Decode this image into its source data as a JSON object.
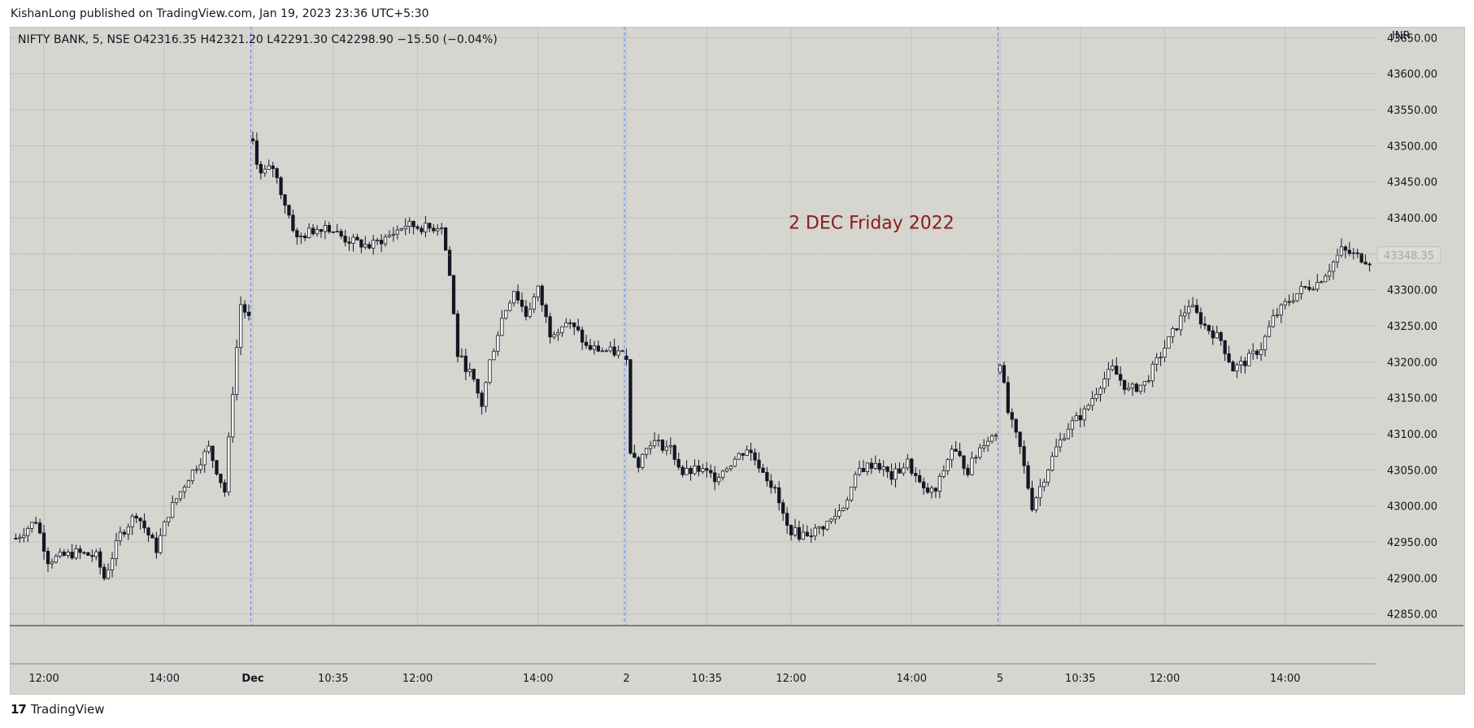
{
  "header": {
    "publisher": "KishanLong published on TradingView.com, Jan 19, 2023 23:36 UTC+5:30"
  },
  "legend": {
    "symbol": "NIFTY BANK, 5, NSE",
    "o_label": "O",
    "o_value": "42316.35",
    "h_label": "H",
    "h_value": "42321.20",
    "l_label": "L",
    "l_value": "42291.30",
    "c_label": "C",
    "c_value": "42298.90",
    "change": "−15.50 (−0.04%)"
  },
  "footer": {
    "brand": "TradingView",
    "logo": "17"
  },
  "chart_data": {
    "type": "candlestick",
    "currency": "INR",
    "annotations": [
      {
        "text": "2 DEC Friday 2022",
        "x_index": 213,
        "y": 43385,
        "color": "#8b1a1a"
      }
    ],
    "ylim": [
      42835,
      43665
    ],
    "y_ticks": [
      43650,
      43600,
      43550,
      43500,
      43450,
      43400,
      43350,
      43300,
      43250,
      43200,
      43150,
      43100,
      43050,
      43000,
      42950,
      42900,
      42850
    ],
    "y_tick_labels": [
      "43650.00",
      "43600.00",
      "43550.00",
      "43500.00",
      "43450.00",
      "43400.00",
      "43350.00",
      "43300.00",
      "43250.00",
      "43200.00",
      "43150.00",
      "43100.00",
      "43050.00",
      "43000.00",
      "42950.00",
      "42900.00",
      "42850.00"
    ],
    "last_price": {
      "value": 43348.35,
      "label": "43348.35"
    },
    "x_ticks": [
      {
        "index": 7,
        "label": "12:00",
        "bold": false
      },
      {
        "index": 37,
        "label": "14:00",
        "bold": false
      },
      {
        "index": 59,
        "label": "Dec",
        "bold": true
      },
      {
        "index": 79,
        "label": "10:35",
        "bold": false
      },
      {
        "index": 100,
        "label": "12:00",
        "bold": false
      },
      {
        "index": 130,
        "label": "14:00",
        "bold": false
      },
      {
        "index": 152,
        "label": "2",
        "bold": false
      },
      {
        "index": 172,
        "label": "10:35",
        "bold": false
      },
      {
        "index": 193,
        "label": "12:00",
        "bold": false
      },
      {
        "index": 223,
        "label": "14:00",
        "bold": false
      },
      {
        "index": 245,
        "label": "5",
        "bold": false
      },
      {
        "index": 265,
        "label": "10:35",
        "bold": false
      },
      {
        "index": 286,
        "label": "12:00",
        "bold": false
      },
      {
        "index": 316,
        "label": "14:00",
        "bold": false
      }
    ],
    "session_breaks": [
      59,
      152,
      245
    ],
    "grid": true,
    "candle_count": 338,
    "candles_compact_note": "each row: [open, high, low, close]",
    "close_path": [
      [
        0,
        42955
      ],
      [
        5,
        42980
      ],
      [
        8,
        42925
      ],
      [
        15,
        42935
      ],
      [
        20,
        42930
      ],
      [
        22,
        42900
      ],
      [
        26,
        42960
      ],
      [
        30,
        42990
      ],
      [
        35,
        42940
      ],
      [
        38,
        42990
      ],
      [
        43,
        43040
      ],
      [
        48,
        43080
      ],
      [
        52,
        43020
      ],
      [
        54,
        43160
      ],
      [
        56,
        43280
      ],
      [
        58,
        43260
      ],
      [
        59,
        43500
      ],
      [
        61,
        43460
      ],
      [
        64,
        43470
      ],
      [
        67,
        43420
      ],
      [
        70,
        43370
      ],
      [
        73,
        43380
      ],
      [
        77,
        43390
      ],
      [
        82,
        43370
      ],
      [
        88,
        43360
      ],
      [
        93,
        43375
      ],
      [
        97,
        43390
      ],
      [
        103,
        43385
      ],
      [
        106,
        43390
      ],
      [
        108,
        43320
      ],
      [
        110,
        43210
      ],
      [
        113,
        43185
      ],
      [
        116,
        43140
      ],
      [
        118,
        43200
      ],
      [
        121,
        43260
      ],
      [
        124,
        43300
      ],
      [
        127,
        43265
      ],
      [
        130,
        43300
      ],
      [
        133,
        43240
      ],
      [
        137,
        43255
      ],
      [
        140,
        43240
      ],
      [
        142,
        43220
      ],
      [
        152,
        43210
      ],
      [
        153,
        43080
      ],
      [
        155,
        43060
      ],
      [
        158,
        43090
      ],
      [
        163,
        43080
      ],
      [
        166,
        43045
      ],
      [
        170,
        43050
      ],
      [
        174,
        43040
      ],
      [
        178,
        43060
      ],
      [
        182,
        43080
      ],
      [
        186,
        43050
      ],
      [
        189,
        43020
      ],
      [
        192,
        42970
      ],
      [
        195,
        42960
      ],
      [
        199,
        42965
      ],
      [
        203,
        42980
      ],
      [
        206,
        43000
      ],
      [
        210,
        43050
      ],
      [
        214,
        43060
      ],
      [
        218,
        43040
      ],
      [
        222,
        43060
      ],
      [
        226,
        43020
      ],
      [
        229,
        43020
      ],
      [
        233,
        43080
      ],
      [
        237,
        43050
      ],
      [
        241,
        43090
      ],
      [
        244,
        43100
      ],
      [
        245,
        43200
      ],
      [
        247,
        43130
      ],
      [
        250,
        43080
      ],
      [
        253,
        43000
      ],
      [
        256,
        43040
      ],
      [
        259,
        43080
      ],
      [
        262,
        43110
      ],
      [
        266,
        43130
      ],
      [
        270,
        43170
      ],
      [
        273,
        43190
      ],
      [
        277,
        43160
      ],
      [
        281,
        43170
      ],
      [
        284,
        43200
      ],
      [
        288,
        43240
      ],
      [
        292,
        43280
      ],
      [
        296,
        43250
      ],
      [
        300,
        43230
      ],
      [
        303,
        43190
      ],
      [
        306,
        43200
      ],
      [
        310,
        43220
      ],
      [
        313,
        43260
      ],
      [
        316,
        43280
      ],
      [
        320,
        43300
      ],
      [
        324,
        43310
      ],
      [
        327,
        43330
      ],
      [
        330,
        43355
      ],
      [
        337,
        43340
      ]
    ]
  }
}
